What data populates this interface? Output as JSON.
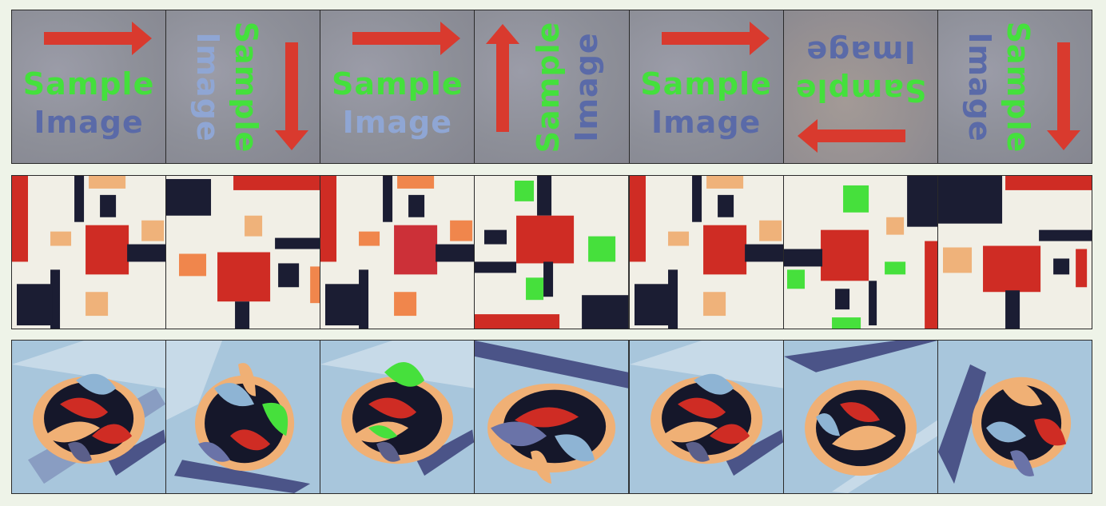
{
  "sample_tiles": [
    {
      "line1": "Sample",
      "line2": "Image"
    },
    {
      "line1": "Sample",
      "line2": "Image"
    },
    {
      "line1": "Sample",
      "line2": "Image"
    },
    {
      "line1": "Sample",
      "line2": "Image"
    },
    {
      "line1": "Sample",
      "line2": "Image"
    },
    {
      "line1": "Sample",
      "line2": "Image"
    },
    {
      "line1": "Sample",
      "line2": "Image"
    }
  ],
  "colors": {
    "arrow": "#d93a2e",
    "text_green": "#44e03c",
    "text_blue": "#5a6aa8",
    "background": "#eef3e8"
  },
  "rows": [
    {
      "content": "sample-image-transforms",
      "count": 7
    },
    {
      "content": "suprematist-composition-transforms",
      "count": 7
    },
    {
      "content": "abstract-swirl-painting-transforms",
      "count": 7
    }
  ]
}
